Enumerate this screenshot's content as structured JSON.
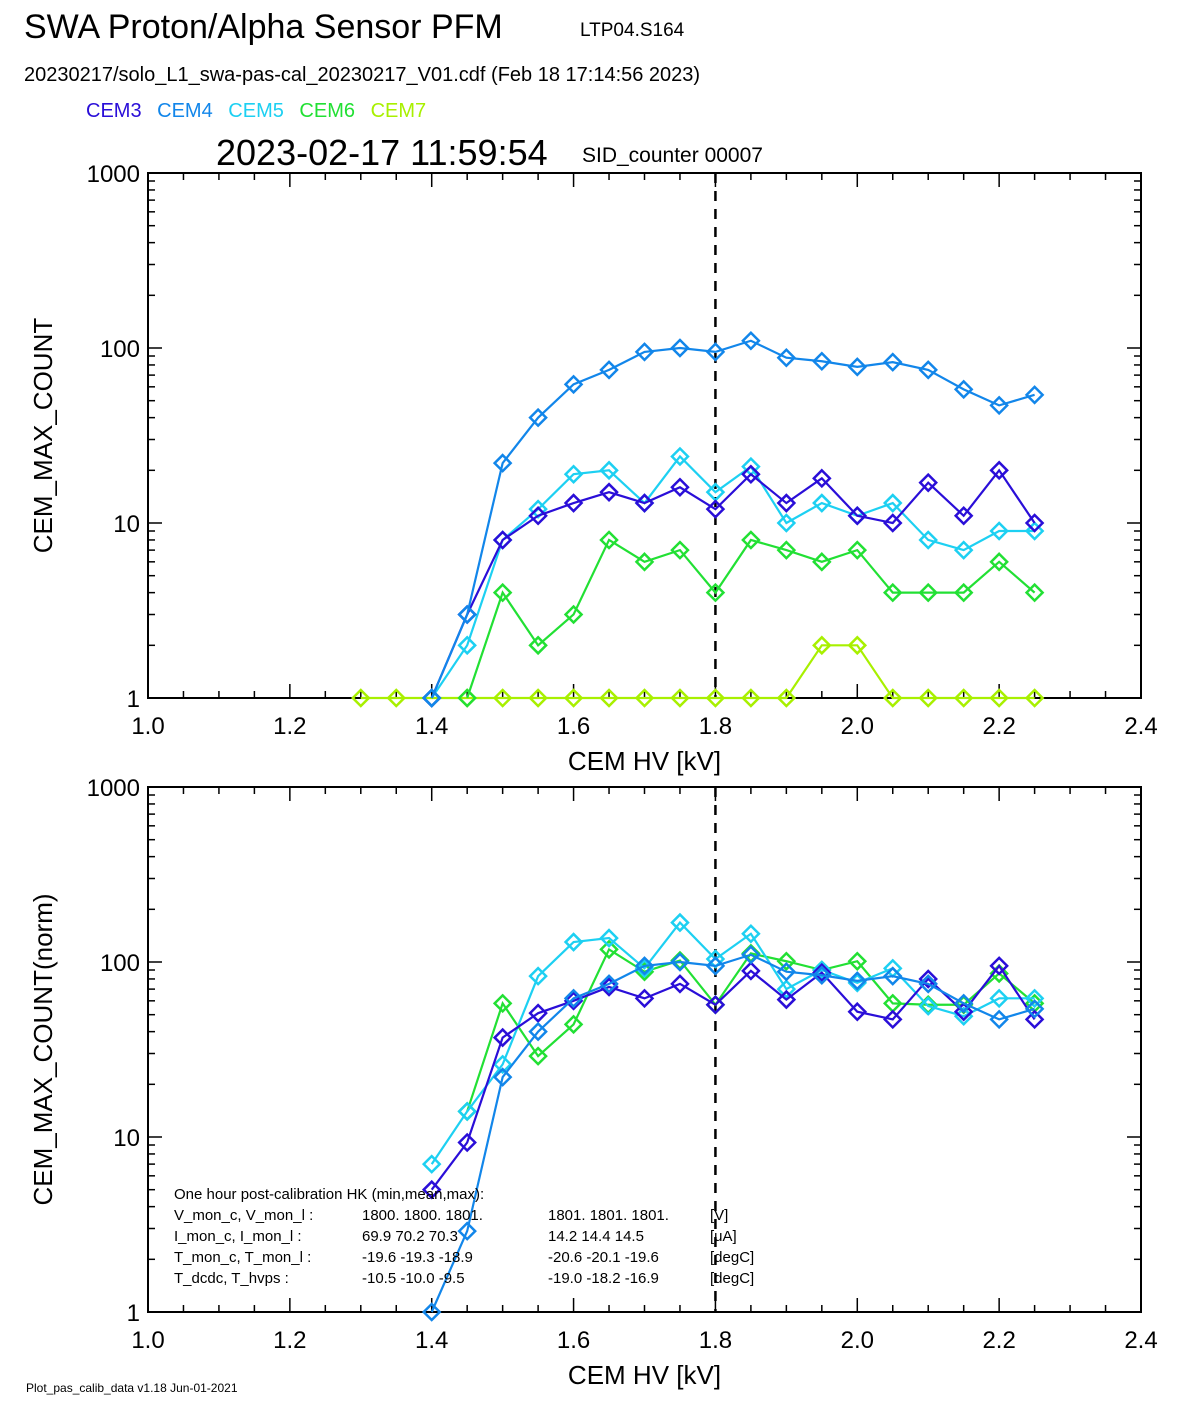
{
  "header": {
    "title": "SWA Proton/Alpha Sensor PFM",
    "subtitle": "LTP04.S164",
    "filename": "20230217/solo_L1_swa-pas-cal_20230217_V01.cdf  (Feb 18 17:14:56 2023)",
    "timestamp": "2023-02-17 11:59:54",
    "sid_counter": "SID_counter 00007"
  },
  "legend": [
    {
      "label": "CEM3",
      "color": "#2a0ed8"
    },
    {
      "label": "CEM4",
      "color": "#1286ea"
    },
    {
      "label": "CEM5",
      "color": "#1dd0f2"
    },
    {
      "label": "CEM6",
      "color": "#22e034"
    },
    {
      "label": "CEM7",
      "color": "#a8f000"
    }
  ],
  "hk_box": {
    "heading": "One hour post-calibration HK (min,mean,max):",
    "rows": [
      {
        "label": "V_mon_c, V_mon_l :",
        "c": "1800.  1800.  1801.",
        "l": "1801.  1801.  1801.",
        "unit": "[V]"
      },
      {
        "label": "I_mon_c,  I_mon_l :",
        "c": "69.9   70.2   70.3",
        "l": "14.2   14.4   14.5",
        "unit": "[uA]"
      },
      {
        "label": "T_mon_c, T_mon_l :",
        "c": "-19.6  -19.3  -18.9",
        "l": "-20.6  -20.1  -19.6",
        "unit": "[degC]"
      },
      {
        "label": "T_dcdc,    T_hvps :",
        "c": "-10.5  -10.0   -9.5",
        "l": "-19.0  -18.2  -16.9",
        "unit": "[degC]"
      }
    ]
  },
  "footer": "Plot_pas_calib_data v1.18 Jun-01-2021",
  "chart_data": [
    {
      "type": "line",
      "xlabel": "CEM HV [kV]",
      "ylabel": "CEM_MAX_COUNT",
      "xlim": [
        1.0,
        2.4
      ],
      "ylim": [
        1,
        1000
      ],
      "yscale": "log",
      "xticks": [
        "1.0",
        "1.2",
        "1.4",
        "1.6",
        "1.8",
        "2.0",
        "2.2",
        "2.4"
      ],
      "yticks": [
        "1",
        "10",
        "100",
        "1000"
      ],
      "reference_line_x": 1.8,
      "x": [
        1.3,
        1.35,
        1.4,
        1.45,
        1.5,
        1.55,
        1.6,
        1.65,
        1.7,
        1.75,
        1.8,
        1.85,
        1.9,
        1.95,
        2.0,
        2.05,
        2.1,
        2.15,
        2.2,
        2.25
      ],
      "series": [
        {
          "name": "CEM7",
          "color": "#a8f000",
          "values": [
            1,
            1,
            1,
            1,
            1,
            1,
            1,
            1,
            1,
            1,
            1,
            1,
            1,
            2,
            2,
            1,
            1,
            1,
            1,
            1
          ]
        },
        {
          "name": "CEM6",
          "color": "#22e034",
          "values": [
            null,
            null,
            null,
            1,
            4,
            2,
            3,
            8,
            6,
            7,
            4,
            8,
            7,
            6,
            7,
            4,
            4,
            4,
            6,
            4
          ]
        },
        {
          "name": "CEM5",
          "color": "#1dd0f2",
          "values": [
            null,
            null,
            1,
            2,
            8,
            12,
            19,
            20,
            13,
            24,
            15,
            21,
            10,
            13,
            11,
            13,
            8,
            7,
            9,
            9
          ]
        },
        {
          "name": "CEM3",
          "color": "#2a0ed8",
          "values": [
            null,
            null,
            1,
            3,
            8,
            11,
            13,
            15,
            13,
            16,
            12,
            19,
            13,
            18,
            11,
            10,
            17,
            11,
            20,
            10
          ]
        },
        {
          "name": "CEM4",
          "color": "#1286ea",
          "values": [
            null,
            null,
            1,
            3,
            22,
            40,
            62,
            75,
            95,
            100,
            95,
            110,
            88,
            84,
            78,
            83,
            75,
            58,
            47,
            54
          ]
        }
      ]
    },
    {
      "type": "line",
      "xlabel": "CEM HV [kV]",
      "ylabel": "CEM_MAX_COUNT(norm)",
      "xlim": [
        1.0,
        2.4
      ],
      "ylim": [
        1,
        1000
      ],
      "yscale": "log",
      "xticks": [
        "1.0",
        "1.2",
        "1.4",
        "1.6",
        "1.8",
        "2.0",
        "2.2",
        "2.4"
      ],
      "yticks": [
        "1",
        "10",
        "100",
        "1000"
      ],
      "reference_line_x": 1.8,
      "x": [
        1.4,
        1.45,
        1.5,
        1.55,
        1.6,
        1.65,
        1.7,
        1.75,
        1.8,
        1.85,
        1.9,
        1.95,
        2.0,
        2.05,
        2.1,
        2.15,
        2.2,
        2.25
      ],
      "series": [
        {
          "name": "CEM6",
          "color": "#22e034",
          "values": [
            null,
            14,
            58,
            29,
            44,
            118,
            88,
            102,
            57,
            112,
            101,
            90,
            101,
            58,
            57,
            57,
            86,
            58
          ]
        },
        {
          "name": "CEM5",
          "color": "#1dd0f2",
          "values": [
            7,
            14,
            26,
            83,
            130,
            137,
            92,
            168,
            104,
            145,
            70,
            90,
            76,
            92,
            56,
            49,
            62,
            62
          ]
        },
        {
          "name": "CEM3",
          "color": "#2a0ed8",
          "values": [
            5,
            9.3,
            37,
            51,
            60,
            72,
            62,
            75,
            57,
            89,
            61,
            87,
            52,
            47,
            80,
            52,
            95,
            47
          ]
        },
        {
          "name": "CEM4",
          "color": "#1286ea",
          "values": [
            1,
            2.9,
            22,
            40,
            62,
            75,
            95,
            100,
            95,
            110,
            88,
            84,
            78,
            83,
            75,
            58,
            47,
            54
          ]
        }
      ]
    }
  ]
}
